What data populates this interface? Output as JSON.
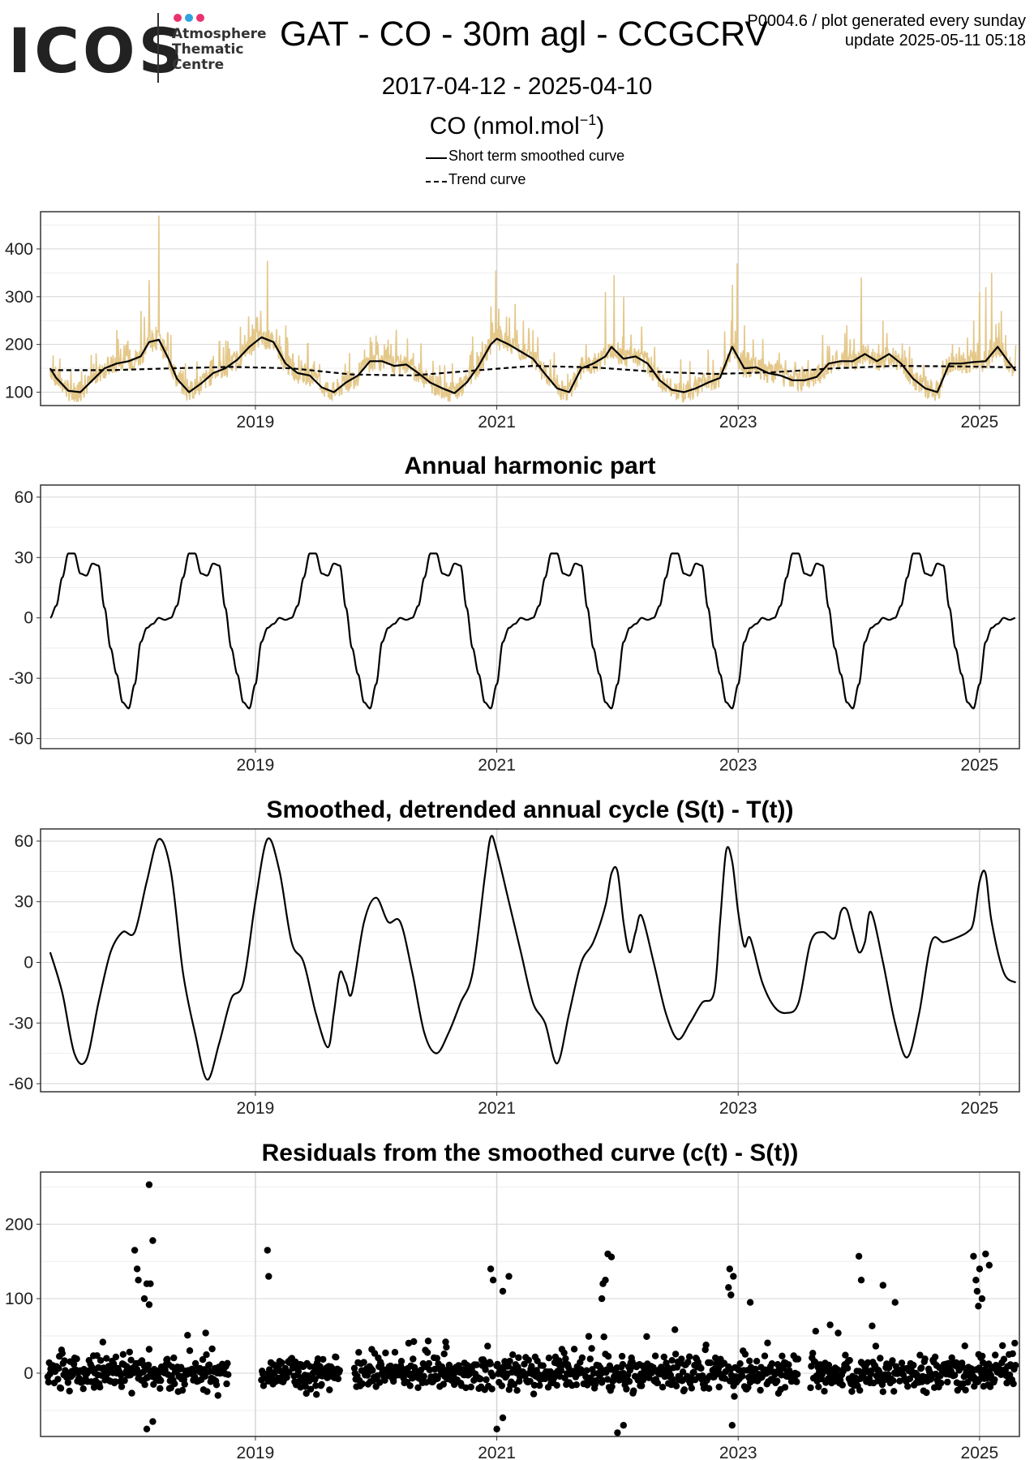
{
  "header": {
    "logo_text": "ICOS",
    "logo_sub1": "Atmosphere",
    "logo_sub2": "Thematic",
    "logo_sub3": "Centre",
    "title": "GAT - CO - 30m agl - CCGCRV",
    "info_line1": "P0004.6 / plot generated every sunday",
    "info_line2": "update  2025-05-11 05:18",
    "date_range": "2017-04-12 - 2025-04-10",
    "units_prefix": "CO (nmol.mol",
    "units_sup": "−1",
    "units_suffix": ")",
    "legend": [
      "Short term smoothed curve",
      "Trend curve"
    ]
  },
  "colors": {
    "raw_data": "#e4c88a",
    "curve": "#000000",
    "grid_major": "#d6d6d6",
    "grid_minor": "#eeeeee",
    "logo_dots": [
      "#e8336f",
      "#2ea3e0",
      "#e8336f"
    ]
  },
  "chart_data": [
    {
      "id": "raw",
      "type": "line",
      "title": "",
      "xlim": [
        2017.22,
        2025.33
      ],
      "ylim": [
        72,
        478
      ],
      "yticks": [
        100,
        200,
        300,
        400
      ],
      "xticks": [
        2019,
        2021,
        2023,
        2025
      ],
      "spikes": [
        [
          2017.85,
          230
        ],
        [
          2018.05,
          270
        ],
        [
          2018.12,
          335
        ],
        [
          2018.2,
          470
        ],
        [
          2018.3,
          220
        ],
        [
          2019.1,
          375
        ],
        [
          2019.25,
          240
        ],
        [
          2019.95,
          215
        ],
        [
          2020.1,
          210
        ],
        [
          2020.95,
          280
        ],
        [
          2020.99,
          355
        ],
        [
          2021.15,
          285
        ],
        [
          2021.3,
          230
        ],
        [
          2021.9,
          310
        ],
        [
          2021.97,
          345
        ],
        [
          2022.05,
          300
        ],
        [
          2022.95,
          325
        ],
        [
          2022.99,
          370
        ],
        [
          2023.05,
          240
        ],
        [
          2023.7,
          220
        ],
        [
          2023.9,
          240
        ],
        [
          2024.02,
          340
        ],
        [
          2024.2,
          250
        ],
        [
          2024.95,
          250
        ],
        [
          2025.0,
          310
        ],
        [
          2025.05,
          320
        ],
        [
          2025.1,
          350
        ],
        [
          2025.18,
          270
        ]
      ],
      "series": [
        {
          "name": "Short term smoothed curve",
          "style": "solid",
          "x": [
            2017.3,
            2017.35,
            2017.45,
            2017.55,
            2017.65,
            2017.75,
            2017.85,
            2017.95,
            2018.05,
            2018.12,
            2018.2,
            2018.28,
            2018.35,
            2018.45,
            2018.55,
            2018.65,
            2018.75,
            2018.85,
            2018.95,
            2019.05,
            2019.15,
            2019.25,
            2019.35,
            2019.45,
            2019.55,
            2019.65,
            2019.75,
            2019.85,
            2019.95,
            2020.05,
            2020.15,
            2020.25,
            2020.35,
            2020.45,
            2020.55,
            2020.65,
            2020.75,
            2020.85,
            2020.95,
            2021.0,
            2021.1,
            2021.2,
            2021.3,
            2021.4,
            2021.5,
            2021.6,
            2021.7,
            2021.8,
            2021.9,
            2021.95,
            2022.05,
            2022.15,
            2022.25,
            2022.35,
            2022.45,
            2022.55,
            2022.65,
            2022.75,
            2022.85,
            2022.95,
            2023.05,
            2023.15,
            2023.25,
            2023.35,
            2023.45,
            2023.55,
            2023.65,
            2023.75,
            2023.85,
            2023.95,
            2024.05,
            2024.15,
            2024.25,
            2024.35,
            2024.45,
            2024.55,
            2024.65,
            2024.75,
            2024.85,
            2024.95,
            2025.05,
            2025.15,
            2025.25,
            2025.3
          ],
          "y": [
            150,
            130,
            103,
            100,
            125,
            150,
            160,
            165,
            175,
            205,
            210,
            170,
            128,
            100,
            118,
            140,
            150,
            168,
            195,
            215,
            205,
            160,
            140,
            135,
            110,
            100,
            120,
            135,
            165,
            165,
            155,
            158,
            140,
            120,
            108,
            98,
            120,
            155,
            200,
            212,
            200,
            185,
            170,
            138,
            108,
            100,
            150,
            160,
            175,
            195,
            170,
            175,
            160,
            125,
            105,
            100,
            108,
            120,
            130,
            195,
            150,
            152,
            140,
            135,
            125,
            125,
            132,
            160,
            165,
            165,
            180,
            165,
            180,
            160,
            128,
            108,
            100,
            160,
            160,
            163,
            165,
            195,
            160,
            145
          ]
        },
        {
          "name": "Trend curve",
          "style": "dashed",
          "x": [
            2017.3,
            2017.8,
            2018.3,
            2018.8,
            2019.3,
            2019.8,
            2020.3,
            2020.8,
            2021.3,
            2021.8,
            2022.3,
            2022.8,
            2023.3,
            2023.8,
            2024.3,
            2024.8,
            2025.3
          ],
          "y": [
            146,
            146,
            150,
            153,
            150,
            137,
            135,
            145,
            155,
            152,
            143,
            138,
            142,
            150,
            155,
            154,
            152
          ]
        }
      ]
    },
    {
      "id": "harmonic",
      "type": "line",
      "title": "Annual harmonic part",
      "xlim": [
        2017.22,
        2025.33
      ],
      "ylim": [
        -65,
        66
      ],
      "yticks": [
        60,
        30,
        0,
        -30,
        -60
      ],
      "xticks": [
        2019,
        2021,
        2023,
        2025
      ],
      "cycle": {
        "phase": [
          0.0,
          0.05,
          0.1,
          0.15,
          0.2,
          0.25,
          0.3,
          0.35,
          0.4,
          0.45,
          0.5,
          0.55,
          0.6,
          0.65,
          0.7,
          0.75,
          0.8,
          0.85,
          0.9,
          0.95,
          1.0
        ],
        "value": [
          0,
          6,
          20,
          32,
          32,
          22,
          21,
          27,
          26,
          5,
          -15,
          -28,
          -42,
          -45,
          -33,
          -12,
          -5,
          -3,
          0,
          -1,
          0
        ],
        "start_year": 2017.3
      },
      "x_end": 2025.3
    },
    {
      "id": "detrended",
      "type": "line",
      "title": "Smoothed, detrended annual cycle (S(t) - T(t))",
      "xlim": [
        2017.22,
        2025.33
      ],
      "ylim": [
        -64,
        66
      ],
      "yticks": [
        60,
        30,
        0,
        -30,
        -60
      ],
      "xticks": [
        2019,
        2021,
        2023,
        2025
      ],
      "series": [
        {
          "name": "",
          "x": [
            2017.3,
            2017.4,
            2017.5,
            2017.6,
            2017.7,
            2017.8,
            2017.9,
            2018.0,
            2018.1,
            2018.2,
            2018.3,
            2018.4,
            2018.5,
            2018.6,
            2018.7,
            2018.8,
            2018.9,
            2019.0,
            2019.1,
            2019.2,
            2019.3,
            2019.4,
            2019.5,
            2019.6,
            2019.65,
            2019.7,
            2019.75,
            2019.8,
            2019.9,
            2020.0,
            2020.1,
            2020.2,
            2020.3,
            2020.4,
            2020.5,
            2020.6,
            2020.7,
            2020.8,
            2020.9,
            2020.95,
            2021.0,
            2021.1,
            2021.2,
            2021.3,
            2021.4,
            2021.5,
            2021.6,
            2021.7,
            2021.8,
            2021.9,
            2021.95,
            2022.0,
            2022.05,
            2022.1,
            2022.15,
            2022.2,
            2022.3,
            2022.4,
            2022.5,
            2022.6,
            2022.7,
            2022.8,
            2022.85,
            2022.9,
            2022.95,
            2023.0,
            2023.05,
            2023.1,
            2023.2,
            2023.3,
            2023.4,
            2023.5,
            2023.6,
            2023.7,
            2023.8,
            2023.85,
            2023.9,
            2023.95,
            2024.0,
            2024.05,
            2024.1,
            2024.2,
            2024.3,
            2024.4,
            2024.5,
            2024.6,
            2024.7,
            2024.8,
            2024.9,
            2024.95,
            2025.0,
            2025.05,
            2025.1,
            2025.2,
            2025.3
          ],
          "y": [
            5,
            -15,
            -45,
            -48,
            -20,
            5,
            15,
            15,
            40,
            61,
            45,
            -5,
            -35,
            -58,
            -40,
            -18,
            -10,
            30,
            61,
            45,
            10,
            0,
            -25,
            -42,
            -25,
            -5,
            -10,
            -15,
            20,
            32,
            20,
            20,
            -5,
            -35,
            -45,
            -35,
            -20,
            -5,
            42,
            62,
            55,
            30,
            5,
            -20,
            -30,
            -50,
            -25,
            0,
            10,
            28,
            44,
            45,
            20,
            5,
            15,
            23,
            0,
            -25,
            -38,
            -30,
            -20,
            -15,
            20,
            55,
            50,
            25,
            8,
            12,
            -10,
            -22,
            -25,
            -20,
            10,
            15,
            12,
            25,
            26,
            15,
            5,
            10,
            25,
            0,
            -30,
            -47,
            -25,
            10,
            10,
            12,
            15,
            20,
            40,
            44,
            20,
            -5,
            -10
          ]
        }
      ]
    },
    {
      "id": "residuals",
      "type": "scatter",
      "title": "Residuals from the smoothed curve (c(t) - S(t))",
      "xlim": [
        2017.22,
        2025.33
      ],
      "ylim": [
        -85,
        270
      ],
      "yticks": [
        200,
        100,
        0
      ],
      "xticks": [
        2019,
        2021,
        2023,
        2025
      ],
      "segments": [
        [
          2017.28,
          2018.78
        ],
        [
          2019.05,
          2019.7
        ],
        [
          2019.82,
          2020.97
        ],
        [
          2021.0,
          2022.9
        ],
        [
          2022.92,
          2023.5
        ],
        [
          2023.6,
          2025.3
        ]
      ],
      "outliers": [
        [
          2018.12,
          253
        ],
        [
          2018.15,
          178
        ],
        [
          2018.0,
          165
        ],
        [
          2018.02,
          140
        ],
        [
          2018.03,
          125
        ],
        [
          2018.1,
          120
        ],
        [
          2018.13,
          120
        ],
        [
          2018.08,
          100
        ],
        [
          2018.12,
          92
        ],
        [
          2019.1,
          165
        ],
        [
          2019.11,
          130
        ],
        [
          2020.95,
          140
        ],
        [
          2020.97,
          125
        ],
        [
          2021.1,
          130
        ],
        [
          2021.05,
          110
        ],
        [
          2021.92,
          160
        ],
        [
          2021.95,
          156
        ],
        [
          2021.9,
          125
        ],
        [
          2021.88,
          120
        ],
        [
          2021.87,
          100
        ],
        [
          2022.93,
          140
        ],
        [
          2022.96,
          130
        ],
        [
          2022.92,
          115
        ],
        [
          2022.94,
          105
        ],
        [
          2023.1,
          95
        ],
        [
          2024.0,
          157
        ],
        [
          2024.02,
          125
        ],
        [
          2024.2,
          118
        ],
        [
          2024.3,
          95
        ],
        [
          2024.95,
          157
        ],
        [
          2025.0,
          140
        ],
        [
          2025.05,
          160
        ],
        [
          2025.08,
          145
        ],
        [
          2024.97,
          125
        ],
        [
          2024.98,
          110
        ],
        [
          2025.02,
          100
        ],
        [
          2024.99,
          90
        ],
        [
          2018.1,
          -75
        ],
        [
          2018.15,
          -65
        ],
        [
          2021.0,
          -75
        ],
        [
          2021.05,
          -60
        ],
        [
          2022.0,
          -80
        ],
        [
          2022.05,
          -70
        ],
        [
          2022.95,
          -70
        ]
      ]
    }
  ]
}
